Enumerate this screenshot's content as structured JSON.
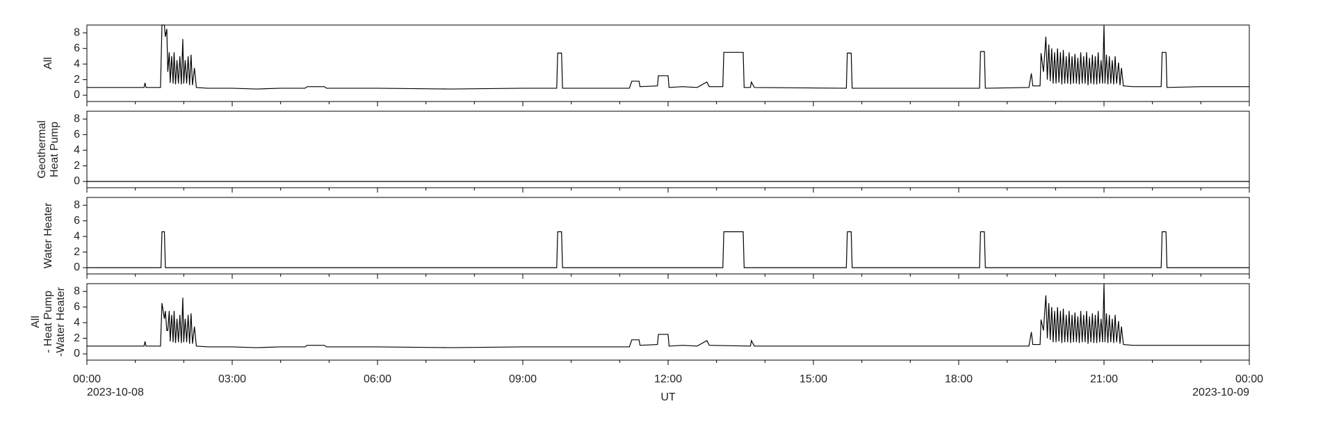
{
  "chart_data": [
    {
      "type": "line",
      "ylabel": [
        "All"
      ],
      "ylim": [
        -0.8,
        9
      ],
      "yticks": [
        0,
        2,
        4,
        6,
        8
      ],
      "x": [
        0,
        1.18,
        1.2,
        1.22,
        1.52,
        1.55,
        1.6,
        1.62,
        1.65,
        1.67,
        1.7,
        1.72,
        1.75,
        1.78,
        1.8,
        1.83,
        1.86,
        1.89,
        1.92,
        1.95,
        1.98,
        2.0,
        2.03,
        2.06,
        2.09,
        2.12,
        2.15,
        2.18,
        2.22,
        2.26,
        2.5,
        3.0,
        3.5,
        4.0,
        4.5,
        4.55,
        4.9,
        4.95,
        6.0,
        7.5,
        9.0,
        9.7,
        9.72,
        9.8,
        9.82,
        11.2,
        11.25,
        11.4,
        11.42,
        11.78,
        11.8,
        12.0,
        12.02,
        12.3,
        12.6,
        12.8,
        12.85,
        13.13,
        13.15,
        13.55,
        13.57,
        13.7,
        13.72,
        13.78,
        15.68,
        15.7,
        15.78,
        15.8,
        18.43,
        18.45,
        18.53,
        18.55,
        19.45,
        19.5,
        19.53,
        19.68,
        19.7,
        19.75,
        19.8,
        19.83,
        19.86,
        19.89,
        19.92,
        19.95,
        19.98,
        20.01,
        20.04,
        20.07,
        20.1,
        20.13,
        20.16,
        20.19,
        20.22,
        20.25,
        20.28,
        20.31,
        20.34,
        20.37,
        20.4,
        20.43,
        20.46,
        20.49,
        20.52,
        20.55,
        20.58,
        20.61,
        20.64,
        20.67,
        20.7,
        20.73,
        20.76,
        20.79,
        20.82,
        20.85,
        20.88,
        20.91,
        20.94,
        20.97,
        21.0,
        21.02,
        21.05,
        21.08,
        21.11,
        21.14,
        21.17,
        21.2,
        21.23,
        21.26,
        21.3,
        21.33,
        21.36,
        21.4,
        21.6,
        22.18,
        22.2,
        22.28,
        22.3,
        23.0,
        24.0
      ],
      "values": [
        1.0,
        1.0,
        1.6,
        1.0,
        1.0,
        9.0,
        9.0,
        7.5,
        8.5,
        3.0,
        5.5,
        1.6,
        5.0,
        1.5,
        5.5,
        1.4,
        4.5,
        1.5,
        5.0,
        1.4,
        7.2,
        1.5,
        4.5,
        1.5,
        5.0,
        1.3,
        5.2,
        1.3,
        3.5,
        1.0,
        0.9,
        0.9,
        0.8,
        0.9,
        0.9,
        1.1,
        1.1,
        0.9,
        0.9,
        0.8,
        0.9,
        0.9,
        5.4,
        5.4,
        0.9,
        0.9,
        1.8,
        1.8,
        1.1,
        1.2,
        2.5,
        2.5,
        1.0,
        1.1,
        1.0,
        1.7,
        1.1,
        1.1,
        5.5,
        5.5,
        1.0,
        1.0,
        1.7,
        1.0,
        0.9,
        5.4,
        5.4,
        0.9,
        0.9,
        5.6,
        5.6,
        0.9,
        1.0,
        2.8,
        1.2,
        1.2,
        5.4,
        3.0,
        7.5,
        2.0,
        6.5,
        1.8,
        6.0,
        1.5,
        5.5,
        1.5,
        6.0,
        1.6,
        5.5,
        1.4,
        5.8,
        1.5,
        5.0,
        1.5,
        5.5,
        1.4,
        5.0,
        1.5,
        5.3,
        1.5,
        4.8,
        1.4,
        5.5,
        1.5,
        5.0,
        1.5,
        5.5,
        1.3,
        4.8,
        1.5,
        5.2,
        1.4,
        5.0,
        1.4,
        5.5,
        1.5,
        4.5,
        1.5,
        9.0,
        1.5,
        5.2,
        1.4,
        5.0,
        1.5,
        4.5,
        1.4,
        5.0,
        1.5,
        4.2,
        1.3,
        3.5,
        1.2,
        1.1,
        1.1,
        5.5,
        5.5,
        1.0,
        1.1,
        1.1
      ]
    },
    {
      "type": "line",
      "ylabel": [
        "Geothermal",
        "Heat Pump"
      ],
      "ylim": [
        -0.8,
        9
      ],
      "yticks": [
        0,
        2,
        4,
        6,
        8
      ],
      "x": [
        0,
        24
      ],
      "values": [
        0,
        0
      ]
    },
    {
      "type": "line",
      "ylabel": [
        "Water Heater"
      ],
      "ylim": [
        -0.8,
        9
      ],
      "yticks": [
        0,
        2,
        4,
        6,
        8
      ],
      "x": [
        0,
        1.53,
        1.55,
        1.6,
        1.62,
        9.7,
        9.72,
        9.8,
        9.82,
        13.13,
        13.15,
        13.55,
        13.57,
        15.68,
        15.7,
        15.78,
        15.8,
        18.43,
        18.45,
        18.53,
        18.55,
        22.18,
        22.2,
        22.28,
        22.3,
        24
      ],
      "values": [
        0,
        0,
        4.6,
        4.6,
        0,
        0,
        4.6,
        4.6,
        0,
        0,
        4.6,
        4.6,
        0,
        0,
        4.6,
        4.6,
        0,
        0,
        4.6,
        4.6,
        0,
        0,
        4.6,
        4.6,
        0,
        0
      ]
    },
    {
      "type": "line",
      "ylabel": [
        "All",
        "- Heat Pump",
        "-Water Heater"
      ],
      "ylim": [
        -0.8,
        9
      ],
      "yticks": [
        0,
        2,
        4,
        6,
        8
      ],
      "xlabel": "UT",
      "xlim": [
        0,
        24
      ],
      "xticks": [
        {
          "value": 0,
          "label": "00:00"
        },
        {
          "value": 3,
          "label": "03:00"
        },
        {
          "value": 6,
          "label": "06:00"
        },
        {
          "value": 9,
          "label": "09:00"
        },
        {
          "value": 12,
          "label": "12:00"
        },
        {
          "value": 15,
          "label": "15:00"
        },
        {
          "value": 18,
          "label": "18:00"
        },
        {
          "value": 21,
          "label": "21:00"
        },
        {
          "value": 24,
          "label": "00:00"
        }
      ],
      "xminorticks": [
        1,
        2,
        4,
        5,
        7,
        8,
        10,
        11,
        13,
        14,
        16,
        17,
        19,
        20,
        22,
        23
      ],
      "date_labels": [
        "2023-10-08",
        "2023-10-09"
      ],
      "x": [
        0,
        1.18,
        1.2,
        1.22,
        1.52,
        1.55,
        1.6,
        1.62,
        1.65,
        1.67,
        1.7,
        1.72,
        1.75,
        1.78,
        1.8,
        1.83,
        1.86,
        1.89,
        1.92,
        1.95,
        1.98,
        2.0,
        2.03,
        2.06,
        2.09,
        2.12,
        2.15,
        2.18,
        2.22,
        2.26,
        2.5,
        3.0,
        3.5,
        4.0,
        4.5,
        4.55,
        4.9,
        4.95,
        6.0,
        7.5,
        9.0,
        11.2,
        11.25,
        11.4,
        11.42,
        11.78,
        11.8,
        12.0,
        12.02,
        12.3,
        12.6,
        12.8,
        12.85,
        13.7,
        13.72,
        13.78,
        19.45,
        19.5,
        19.53,
        19.68,
        19.7,
        19.75,
        19.8,
        19.83,
        19.86,
        19.89,
        19.92,
        19.95,
        19.98,
        20.01,
        20.04,
        20.07,
        20.1,
        20.13,
        20.16,
        20.19,
        20.22,
        20.25,
        20.28,
        20.31,
        20.34,
        20.37,
        20.4,
        20.43,
        20.46,
        20.49,
        20.52,
        20.55,
        20.58,
        20.61,
        20.64,
        20.67,
        20.7,
        20.73,
        20.76,
        20.79,
        20.82,
        20.85,
        20.88,
        20.91,
        20.94,
        20.97,
        21.0,
        21.02,
        21.05,
        21.08,
        21.11,
        21.14,
        21.17,
        21.2,
        21.23,
        21.26,
        21.3,
        21.33,
        21.36,
        21.4,
        21.6,
        23.0,
        24.0
      ],
      "values": [
        1.0,
        1.0,
        1.6,
        1.0,
        1.0,
        6.5,
        4.5,
        5.5,
        3.0,
        3.0,
        5.5,
        1.6,
        5.0,
        1.5,
        5.5,
        1.4,
        4.5,
        1.5,
        5.0,
        1.4,
        7.2,
        1.5,
        4.5,
        1.5,
        5.0,
        1.3,
        5.2,
        1.3,
        3.5,
        1.0,
        0.9,
        0.9,
        0.8,
        0.9,
        0.9,
        1.1,
        1.1,
        0.9,
        0.9,
        0.8,
        0.9,
        0.9,
        1.8,
        1.8,
        1.1,
        1.2,
        2.5,
        2.5,
        1.0,
        1.1,
        1.0,
        1.7,
        1.1,
        1.0,
        1.7,
        1.0,
        1.0,
        2.8,
        1.2,
        1.2,
        4.4,
        3.0,
        7.5,
        2.0,
        6.5,
        1.8,
        6.0,
        1.5,
        5.5,
        1.5,
        6.0,
        1.6,
        5.5,
        1.4,
        5.8,
        1.5,
        5.0,
        1.5,
        5.5,
        1.4,
        5.0,
        1.5,
        5.3,
        1.5,
        4.8,
        1.4,
        5.5,
        1.5,
        5.0,
        1.5,
        5.5,
        1.3,
        4.8,
        1.5,
        5.2,
        1.4,
        5.0,
        1.4,
        5.5,
        1.5,
        4.5,
        1.5,
        9.0,
        1.5,
        5.2,
        1.4,
        5.0,
        1.5,
        4.5,
        1.4,
        5.0,
        1.5,
        4.2,
        1.3,
        3.5,
        1.2,
        1.1,
        1.1,
        1.1
      ]
    }
  ]
}
